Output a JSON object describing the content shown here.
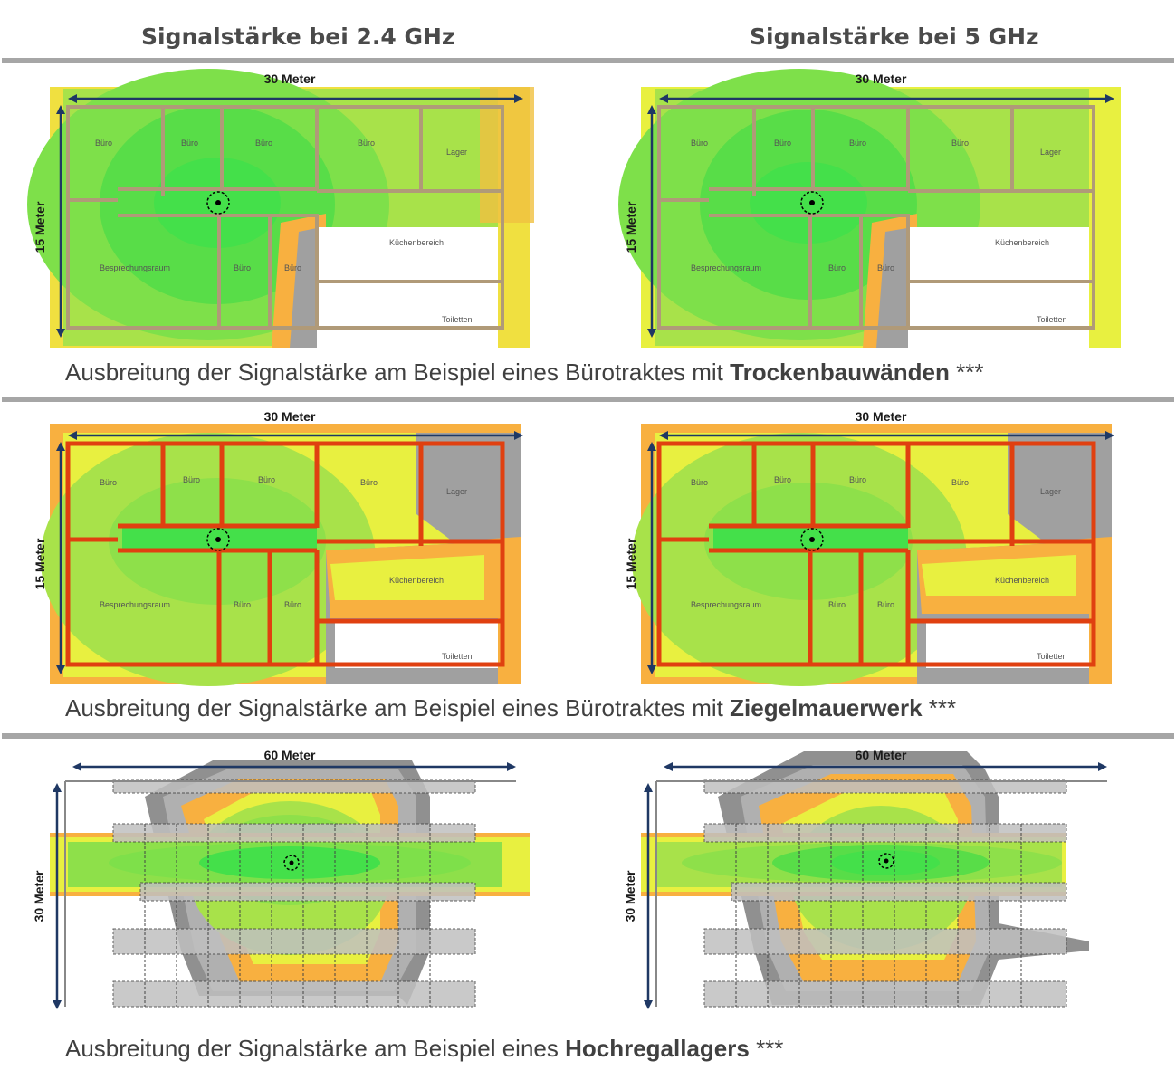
{
  "columns": [
    "Signalstärke bei 2.4 GHz",
    "Signalstärke bei 5 GHz"
  ],
  "rows": [
    {
      "caption_prefix": "Ausbreitung der Signalstärke am Beispiel eines Bürotraktes mit ",
      "caption_bold": "Trockenbauwänden",
      "caption_suffix": " ***",
      "width_label": "30 Meter",
      "height_label": "15 Meter",
      "wall_material": "Trockenbauwände"
    },
    {
      "caption_prefix": "Ausbreitung der Signalstärke am Beispiel eines Bürotraktes mit ",
      "caption_bold": "Ziegelmauerwerk",
      "caption_suffix": " ***",
      "width_label": "30 Meter",
      "height_label": "15 Meter",
      "wall_material": "Ziegelmauerwerk"
    },
    {
      "caption_prefix": "Ausbreitung der Signalstärke am Beispiel eines ",
      "caption_bold": "Hochregallagers",
      "caption_suffix": " ***",
      "width_label": "60 Meter",
      "height_label": "30 Meter"
    }
  ],
  "room_labels": {
    "buero": "Büro",
    "lager": "Lager",
    "kueche": "Küchenbereich",
    "besprechung": "Besprechungsraum",
    "toiletten": "Toiletten"
  },
  "colors": {
    "strong": "#44e04a",
    "good": "#8ee04a",
    "medium": "#e8f040",
    "weak": "#f8b040",
    "poor": "#a0a0a0",
    "drywall": "#b09a78",
    "brick": "#e04010",
    "axis": "#1f3864",
    "separator": "#a6a6a6"
  }
}
